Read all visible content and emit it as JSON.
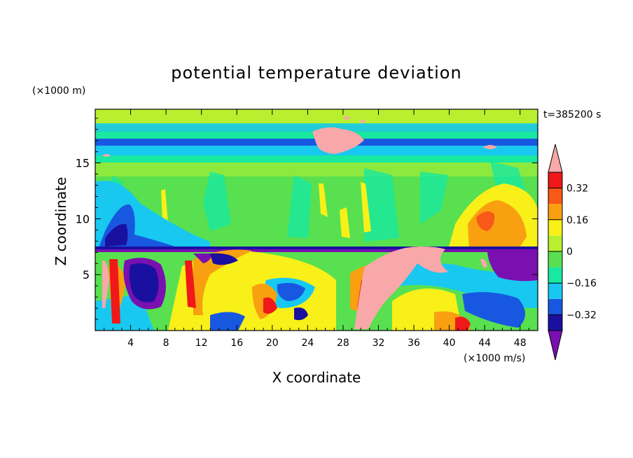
{
  "chart_data": {
    "type": "heatmap",
    "title": "potential temperature deviation",
    "xlabel": "X coordinate",
    "ylabel": "Z coordinate",
    "x_unit": "(×1000 m/s)",
    "y_unit": "(×1000 m)",
    "time_label": "t=385200 s",
    "xlim": [
      0,
      50
    ],
    "ylim": [
      0,
      19.8
    ],
    "x_ticks": [
      4,
      8,
      12,
      16,
      20,
      24,
      28,
      32,
      36,
      40,
      44,
      48
    ],
    "y_ticks": [
      5,
      10,
      15
    ],
    "colorbar": {
      "levels": [
        -0.4,
        -0.32,
        -0.24,
        -0.16,
        -0.08,
        0,
        0.08,
        0.16,
        0.24,
        0.32,
        0.4
      ],
      "tick_labels": [
        "0.32",
        "0.16",
        "0",
        "−0.16",
        "−0.32"
      ],
      "tick_values": [
        0.32,
        0.16,
        0,
        -0.16,
        -0.32
      ],
      "colors": [
        "#7a10b0",
        "#1a10a0",
        "#1858e0",
        "#18c8f0",
        "#18e8a0",
        "#58e050",
        "#b8f030",
        "#f8f018",
        "#f8a010",
        "#f85818",
        "#f01818",
        "#f8a8a8"
      ],
      "extends": "both"
    }
  }
}
